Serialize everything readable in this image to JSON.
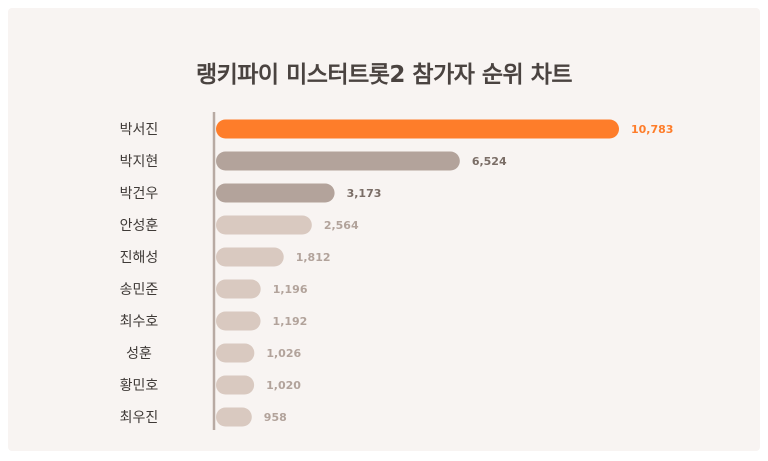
{
  "chart_data": {
    "type": "bar",
    "orientation": "horizontal",
    "title": "랭키파이 미스터트롯2 참가자 순위 차트",
    "categories": [
      "박서진",
      "박지현",
      "박건우",
      "안성훈",
      "진해성",
      "송민준",
      "최수호",
      "성훈",
      "황민호",
      "최우진"
    ],
    "values": [
      10783,
      6524,
      3173,
      2564,
      1812,
      1196,
      1192,
      1026,
      1020,
      958
    ],
    "value_labels": [
      "10,783",
      "6,524",
      "3,173",
      "2,564",
      "1,812",
      "1,196",
      "1,192",
      "1,026",
      "1,020",
      "958"
    ],
    "xlim": [
      0,
      10783
    ],
    "grid": false,
    "bar_colors": [
      "#fe7d2a",
      "#b3a39b",
      "#b3a39b",
      "#d9c9c0",
      "#d9c9c0",
      "#d9c9c0",
      "#d9c9c0",
      "#d9c9c0",
      "#d9c9c0",
      "#d9c9c0"
    ],
    "label_colors": [
      "#fe7d2a",
      "#7a6d66",
      "#7a6d66",
      "#b2a39b",
      "#b2a39b",
      "#b2a39b",
      "#b2a39b",
      "#b2a39b",
      "#b2a39b",
      "#b2a39b"
    ]
  }
}
